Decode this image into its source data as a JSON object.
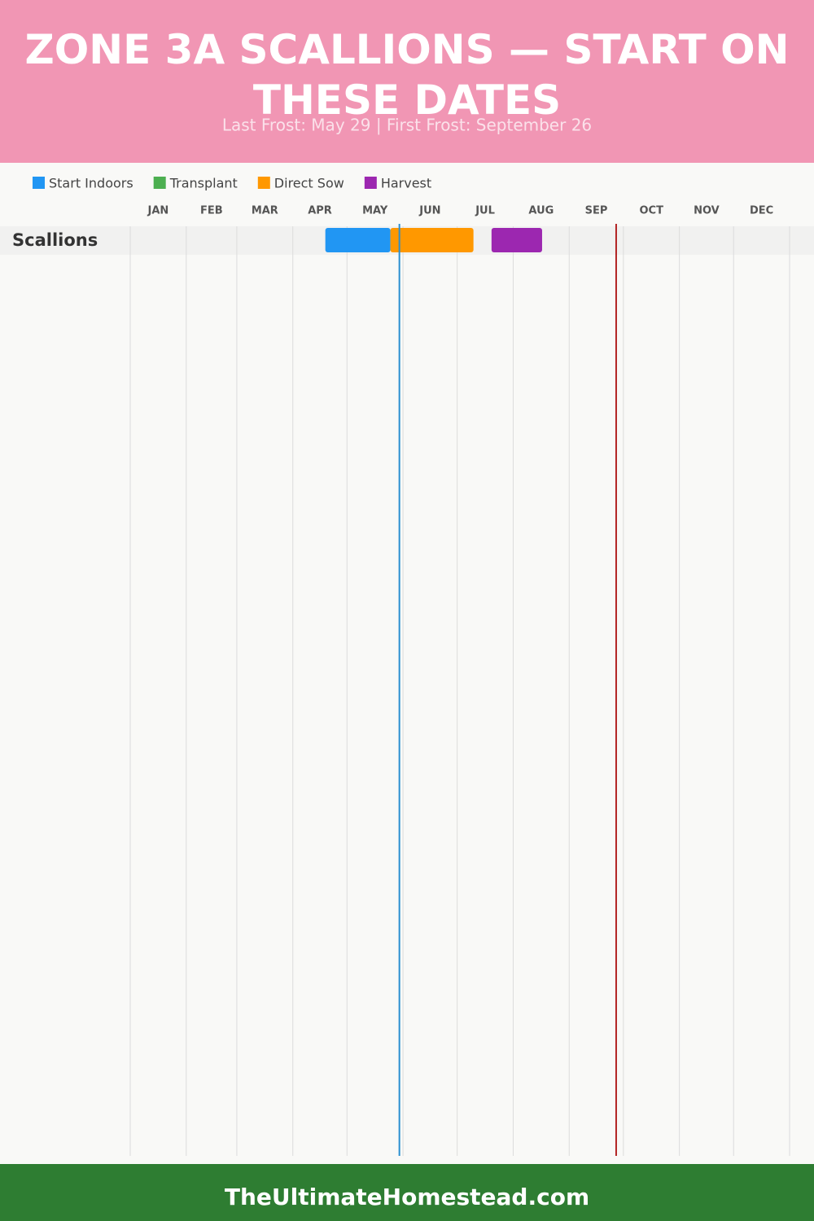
{
  "chart_data": {
    "type": "gantt",
    "title": "ZONE 3A SCALLIONS — START ON THESE DATES",
    "subtitle": "Last Frost: May 29 | First Frost: September 26",
    "categories": [
      "Scallions"
    ],
    "series": [
      {
        "name": "Start Indoors",
        "color": "#2196f3",
        "values": [
          [
            108,
            144
          ]
        ]
      },
      {
        "name": "Transplant",
        "color": "#4caf50",
        "values": [
          null
        ]
      },
      {
        "name": "Direct Sow",
        "color": "#ff9800",
        "values": [
          [
            144,
            190
          ]
        ]
      },
      {
        "name": "Harvest",
        "color": "#9c27b0",
        "values": [
          [
            200,
            228
          ]
        ]
      }
    ],
    "xlim": [
      0,
      365
    ],
    "xticks": [
      {
        "value": 0,
        "label": "JAN"
      },
      {
        "value": 31,
        "label": "FEB"
      },
      {
        "value": 59,
        "label": "MAR"
      },
      {
        "value": 90,
        "label": "APR"
      },
      {
        "value": 120,
        "label": "MAY"
      },
      {
        "value": 151,
        "label": "JUN"
      },
      {
        "value": 181,
        "label": "JUL"
      },
      {
        "value": 212,
        "label": "AUG"
      },
      {
        "value": 243,
        "label": "SEP"
      },
      {
        "value": 273,
        "label": "OCT"
      },
      {
        "value": 304,
        "label": "NOV"
      },
      {
        "value": 334,
        "label": "DEC"
      }
    ],
    "grid": true,
    "frost_lines": [
      {
        "value": 149,
        "color": "#2a8fd0"
      },
      {
        "value": 269,
        "color": "#b22222"
      }
    ],
    "footer": "TheUltimateHomestead.com"
  }
}
